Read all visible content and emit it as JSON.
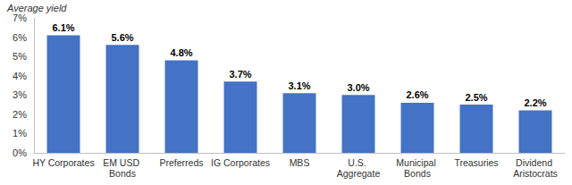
{
  "chart_data": {
    "type": "bar",
    "ylabel": "Average yield",
    "categories": [
      "HY Corporates",
      "EM USD Bonds",
      "Preferreds",
      "IG Corporates",
      "MBS",
      "U.S. Aggregate",
      "Municipal Bonds",
      "Treasuries",
      "Dividend Aristocrats"
    ],
    "values": [
      6.1,
      5.6,
      4.8,
      3.7,
      3.1,
      3.0,
      2.6,
      2.5,
      2.2
    ],
    "value_labels": [
      "6.1%",
      "5.6%",
      "4.8%",
      "3.7%",
      "3.1%",
      "3.0%",
      "2.6%",
      "2.5%",
      "2.2%"
    ],
    "color": "#4472c4",
    "ylim": [
      0,
      7
    ],
    "yticks": [
      {
        "value": 0,
        "label": "0%"
      },
      {
        "value": 1,
        "label": "1%"
      },
      {
        "value": 2,
        "label": "2%"
      },
      {
        "value": 3,
        "label": "3%"
      },
      {
        "value": 4,
        "label": "4%"
      },
      {
        "value": 5,
        "label": "5%"
      },
      {
        "value": 6,
        "label": "6%"
      },
      {
        "value": 7,
        "label": "7%"
      }
    ],
    "grid": false,
    "data_labels": true
  }
}
